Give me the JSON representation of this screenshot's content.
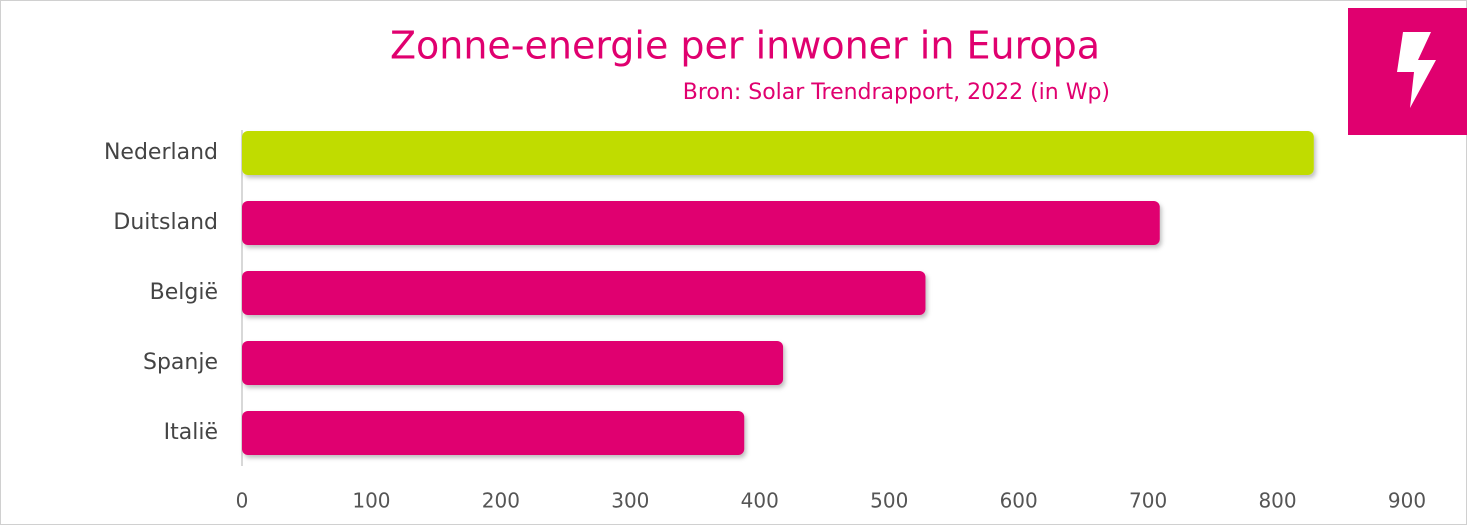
{
  "chart_data": {
    "type": "bar",
    "orientation": "horizontal",
    "title": "Zonne-energie per inwoner in Europa",
    "subtitle": "Bron: Solar Trendrapport, 2022 (in Wp)",
    "categories": [
      "Nederland",
      "Duitsland",
      "België",
      "Spanje",
      "Italië"
    ],
    "values": [
      828,
      709,
      528,
      418,
      388
    ],
    "colors": [
      "#c0dc00",
      "#e0006f",
      "#e0006f",
      "#e0006f",
      "#e0006f"
    ],
    "xlim": [
      0,
      900
    ],
    "xticks": [
      0,
      100,
      200,
      300,
      400,
      500,
      600,
      700,
      800,
      900
    ],
    "grid": false
  }
}
